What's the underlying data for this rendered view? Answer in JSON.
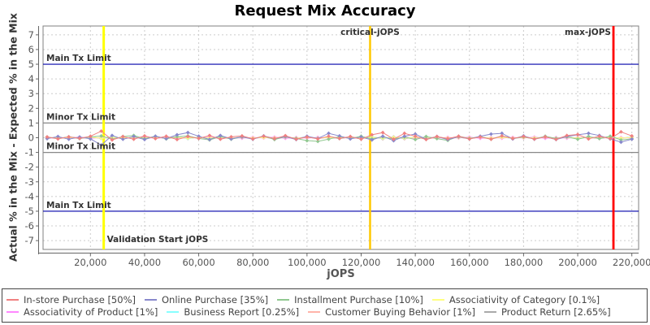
{
  "title": "Request Mix Accuracy",
  "axes": {
    "xlabel": "jOPS",
    "ylabel": "Actual % in the Mix - Expected % in the Mix",
    "xlim": [
      2500,
      222500
    ],
    "ylim": [
      -7.6,
      7.6
    ],
    "x_ticks": [
      20000,
      40000,
      60000,
      80000,
      100000,
      120000,
      140000,
      160000,
      180000,
      200000,
      220000
    ],
    "x_tick_labels": [
      "20,000",
      "40,000",
      "60,000",
      "80,000",
      "100,000",
      "120,000",
      "140,000",
      "160,000",
      "180,000",
      "200,000",
      "220,000"
    ],
    "y_ticks": [
      7,
      6,
      5,
      4,
      3,
      2,
      1,
      0,
      -1,
      -2,
      -3,
      -4,
      -5,
      -6,
      -7
    ],
    "grid": "dashed-lightgray",
    "legend_position": "bottom"
  },
  "chart_data": {
    "type": "line",
    "marker": "diamond",
    "x": [
      4000,
      8000,
      12000,
      16000,
      20000,
      24000,
      28000,
      32000,
      36000,
      40000,
      44000,
      48000,
      52000,
      56000,
      60000,
      64000,
      68000,
      72000,
      76000,
      80000,
      84000,
      88000,
      92000,
      96000,
      100000,
      104000,
      108000,
      112000,
      116000,
      120000,
      124000,
      128000,
      132000,
      136000,
      140000,
      144000,
      148000,
      152000,
      156000,
      160000,
      164000,
      168000,
      172000,
      176000,
      180000,
      184000,
      188000,
      192000,
      196000,
      200000,
      204000,
      208000,
      212000,
      216000,
      220000
    ],
    "series": [
      {
        "name": "In-store Purchase [50%]",
        "color": "#f08080",
        "y": [
          0.05,
          -0.08,
          0.06,
          -0.04,
          0.1,
          0.45,
          -0.15,
          0.08,
          -0.1,
          0.12,
          -0.06,
          0.1,
          -0.12,
          0.08,
          -0.05,
          0.15,
          -0.1,
          0.06,
          0.12,
          -0.08,
          0.1,
          -0.06,
          0.14,
          -0.1,
          0.05,
          -0.08,
          0.1,
          -0.05,
          0.08,
          -0.1,
          0.2,
          0.35,
          -0.1,
          0.3,
          0.1,
          -0.12,
          0.08,
          -0.06,
          0.1,
          -0.08,
          0.05,
          -0.1,
          0.12,
          -0.05,
          0.08,
          -0.09,
          0.06,
          -0.11,
          0.15,
          0.22,
          -0.08,
          0.1,
          -0.06,
          0.4,
          0.12
        ]
      },
      {
        "name": "Online Purchase [35%]",
        "color": "#8888cc",
        "y": [
          -0.06,
          0.08,
          -0.1,
          0.05,
          -0.08,
          -0.5,
          0.15,
          -0.1,
          0.08,
          -0.12,
          0.1,
          -0.06,
          0.2,
          0.35,
          0.1,
          -0.12,
          0.15,
          -0.08,
          0.06,
          -0.1,
          0.12,
          -0.06,
          0.08,
          -0.12,
          0.1,
          -0.05,
          0.3,
          0.12,
          -0.08,
          0.05,
          -0.15,
          0.1,
          -0.2,
          0.1,
          0.25,
          -0.1,
          0.08,
          -0.12,
          0.06,
          -0.08,
          0.1,
          0.25,
          0.3,
          -0.08,
          0.12,
          -0.1,
          0.06,
          -0.12,
          0.08,
          0.2,
          0.3,
          0.15,
          -0.08,
          -0.3,
          -0.1
        ]
      },
      {
        "name": "Installment Purchase [10%]",
        "color": "#90c890",
        "y": [
          0.03,
          -0.05,
          0.06,
          -0.03,
          0.05,
          0.12,
          -0.1,
          0.08,
          0.15,
          -0.06,
          0.1,
          -0.08,
          0.06,
          0.12,
          -0.05,
          -0.15,
          0.08,
          -0.1,
          0.05,
          -0.08,
          0.1,
          -0.12,
          0.06,
          -0.05,
          -0.2,
          -0.25,
          -0.1,
          0.08,
          -0.05,
          0.1,
          -0.08,
          0.06,
          -0.1,
          0.05,
          -0.12,
          0.08,
          -0.06,
          -0.18,
          0.1,
          -0.05,
          0.08,
          -0.1,
          0.12,
          -0.06,
          0.05,
          -0.08,
          0.1,
          -0.05,
          0.06,
          -0.1,
          0.08,
          -0.05,
          0.1,
          -0.15,
          -0.08
        ]
      },
      {
        "name": "Associativity of Category [0.1%]",
        "color": "#ffff80",
        "y": [
          0.02,
          -0.02,
          0.01,
          -0.01,
          0.03,
          -0.03,
          0.02,
          -0.02,
          0.01,
          -0.01,
          0.03,
          -0.03,
          0.02,
          -0.02,
          0.01,
          -0.01,
          0.03,
          -0.03,
          0.02,
          -0.02,
          0.01,
          -0.01,
          0.03,
          -0.03,
          0.02,
          -0.02,
          0.01,
          -0.01,
          0.03,
          -0.03,
          0.02,
          -0.02,
          0.01,
          -0.01,
          0.03,
          -0.03,
          0.02,
          -0.02,
          0.01,
          -0.01,
          0.03,
          -0.03,
          0.02,
          -0.02,
          0.01,
          -0.01,
          0.03,
          -0.03,
          0.02,
          -0.02,
          0.01,
          -0.01,
          0.03,
          -0.03,
          0.02
        ]
      },
      {
        "name": "Associativity of Product [1%]",
        "color": "#ff88ff",
        "y": [
          -0.03,
          0.02,
          -0.02,
          0.04,
          -0.04,
          0.01,
          -0.03,
          0.02,
          -0.02,
          0.04,
          -0.04,
          0.01,
          -0.03,
          0.02,
          -0.02,
          0.04,
          -0.04,
          0.01,
          -0.03,
          0.02,
          -0.02,
          0.04,
          -0.04,
          0.01,
          -0.03,
          0.02,
          -0.02,
          0.04,
          -0.04,
          0.01,
          -0.03,
          0.02,
          -0.02,
          0.04,
          -0.04,
          0.01,
          -0.03,
          0.02,
          -0.02,
          0.04,
          -0.04,
          0.01,
          -0.03,
          0.02,
          -0.02,
          0.04,
          -0.04,
          0.01,
          -0.03,
          0.02,
          -0.02,
          0.04,
          -0.04,
          0.01,
          -0.03
        ]
      },
      {
        "name": "Business Report [0.25%]",
        "color": "#88ffff",
        "y": [
          0.04,
          -0.05,
          0.03,
          -0.03,
          0.05,
          -0.04,
          0.04,
          -0.05,
          0.03,
          -0.03,
          0.05,
          -0.04,
          0.04,
          -0.05,
          0.03,
          -0.03,
          0.05,
          -0.04,
          0.04,
          -0.05,
          0.03,
          -0.03,
          0.05,
          -0.04,
          0.04,
          -0.05,
          0.03,
          -0.03,
          0.05,
          -0.04,
          0.04,
          -0.05,
          0.03,
          -0.03,
          0.05,
          -0.04,
          0.04,
          -0.05,
          0.03,
          -0.03,
          0.05,
          -0.04,
          0.04,
          -0.05,
          0.03,
          -0.03,
          0.05,
          -0.04,
          0.04,
          -0.05,
          0.03,
          -0.03,
          0.05,
          -0.04,
          0.04
        ]
      },
      {
        "name": "Customer Buying Behavior [1%]",
        "color": "#ffb4aa",
        "y": [
          0.06,
          -0.07,
          0.05,
          -0.05,
          0.08,
          -0.06,
          0.04,
          -0.08,
          0.06,
          -0.07,
          0.05,
          -0.05,
          0.08,
          -0.06,
          0.04,
          -0.08,
          0.06,
          -0.07,
          0.05,
          -0.05,
          0.08,
          -0.06,
          0.04,
          -0.08,
          0.06,
          -0.07,
          0.05,
          -0.05,
          0.08,
          -0.06,
          0.04,
          -0.08,
          0.06,
          -0.07,
          0.05,
          -0.05,
          0.08,
          -0.06,
          0.04,
          -0.08,
          0.06,
          -0.07,
          0.05,
          -0.05,
          0.08,
          -0.06,
          0.04,
          -0.08,
          0.06,
          -0.07,
          0.05,
          -0.05,
          0.08,
          -0.06,
          0.04
        ]
      },
      {
        "name": "Product Return [2.65%]",
        "color": "#aaaaaa",
        "y": [
          0.05,
          -0.04,
          0.03,
          -0.06,
          0.04,
          -0.03,
          0.05,
          -0.04,
          0.03,
          -0.06,
          0.04,
          -0.03,
          0.05,
          -0.04,
          0.03,
          -0.06,
          0.04,
          -0.03,
          0.05,
          -0.04,
          0.03,
          -0.06,
          0.04,
          -0.03,
          0.05,
          -0.04,
          0.03,
          -0.06,
          0.04,
          -0.03,
          0.05,
          -0.04,
          0.03,
          -0.06,
          0.04,
          -0.03,
          0.05,
          -0.04,
          0.03,
          -0.06,
          0.04,
          -0.03,
          0.05,
          -0.04,
          0.03,
          -0.06,
          0.04,
          -0.03,
          0.05,
          -0.04,
          0.03,
          -0.06,
          0.04,
          -0.03,
          0.05
        ]
      }
    ],
    "reference_lines": {
      "horizontal": [
        {
          "label": "Main Tx Limit",
          "value": 5,
          "color": "#0000aa"
        },
        {
          "label": "Minor Tx Limit",
          "value": 1,
          "color": "#888888"
        },
        {
          "label": "Minor Tx Limit",
          "value": -1,
          "color": "#888888"
        },
        {
          "label": "Main Tx Limit",
          "value": -5,
          "color": "#0000aa"
        }
      ],
      "vertical": [
        {
          "label": "Validation Start jOPS",
          "value": 24900,
          "color": "#ffff00",
          "width": 3,
          "label_pos": "bottom-right"
        },
        {
          "label": "critical-jOPS",
          "value": 123300,
          "color": "#ffc800",
          "width": 2.5,
          "label_pos": "top-center"
        },
        {
          "label": "max-jOPS",
          "value": 213200,
          "color": "#ff0000",
          "width": 2.8,
          "label_pos": "top-left"
        }
      ]
    }
  }
}
